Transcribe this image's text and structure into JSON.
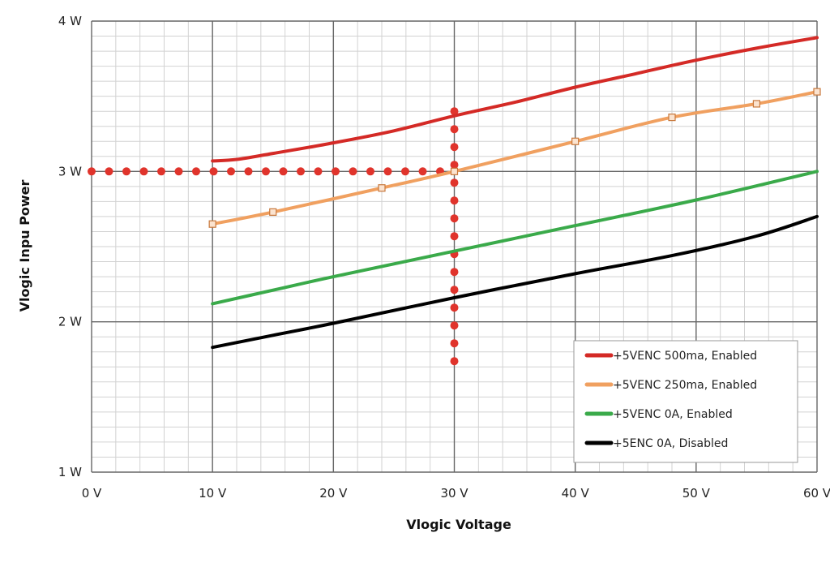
{
  "chart_data": {
    "type": "line",
    "title": "",
    "xlabel": "Vlogic Voltage",
    "ylabel": "Vlogic Inpu Power",
    "xlim": [
      0,
      60
    ],
    "ylim": [
      1,
      4
    ],
    "x_ticks": [
      {
        "value": 0,
        "label": "0 V"
      },
      {
        "value": 10,
        "label": "10 V"
      },
      {
        "value": 20,
        "label": "20 V"
      },
      {
        "value": 30,
        "label": "30 V"
      },
      {
        "value": 40,
        "label": "40 V"
      },
      {
        "value": 50,
        "label": "50 V"
      },
      {
        "value": 60,
        "label": "60 V"
      }
    ],
    "y_ticks": [
      {
        "value": 1,
        "label": "1 W"
      },
      {
        "value": 2,
        "label": "2 W"
      },
      {
        "value": 3,
        "label": "3 W"
      },
      {
        "value": 4,
        "label": "4 W"
      }
    ],
    "grid": true,
    "legend_position": "bottom-right",
    "series": [
      {
        "name": "+5VENC 500ma, Enabled",
        "color": "#d42a26",
        "marker": false,
        "points": [
          [
            10,
            3.07
          ],
          [
            12,
            3.08
          ],
          [
            15,
            3.12
          ],
          [
            20,
            3.19
          ],
          [
            25,
            3.27
          ],
          [
            30,
            3.37
          ],
          [
            35,
            3.46
          ],
          [
            40,
            3.56
          ],
          [
            45,
            3.65
          ],
          [
            50,
            3.74
          ],
          [
            55,
            3.82
          ],
          [
            60,
            3.89
          ]
        ]
      },
      {
        "name": "+5VENC 250ma, Enabled",
        "color": "#f0a060",
        "marker": true,
        "points": [
          [
            10,
            2.65
          ],
          [
            15,
            2.73
          ],
          [
            24,
            2.89
          ],
          [
            30,
            3.0
          ],
          [
            40,
            3.2
          ],
          [
            48,
            3.36
          ],
          [
            55,
            3.45
          ],
          [
            60,
            3.53
          ]
        ]
      },
      {
        "name": "+5VENC 0A, Enabled",
        "color": "#3aaa4a",
        "marker": false,
        "points": [
          [
            10,
            2.12
          ],
          [
            15,
            2.21
          ],
          [
            20,
            2.3
          ],
          [
            30,
            2.47
          ],
          [
            40,
            2.64
          ],
          [
            50,
            2.81
          ],
          [
            60,
            3.0
          ]
        ]
      },
      {
        "name": "+5ENC 0A, Disabled",
        "color": "#000000",
        "marker": false,
        "points": [
          [
            10,
            1.83
          ],
          [
            15,
            1.91
          ],
          [
            20,
            1.99
          ],
          [
            30,
            2.16
          ],
          [
            40,
            2.32
          ],
          [
            48,
            2.44
          ],
          [
            55,
            2.57
          ],
          [
            60,
            2.7
          ]
        ]
      }
    ],
    "annotations": [
      {
        "kind": "dotted-horizontal",
        "color": "#e0342c",
        "y": 3.0,
        "x_from": 0,
        "x_to": 30
      },
      {
        "kind": "dotted-vertical",
        "color": "#e0342c",
        "x": 30,
        "y_from": 1.74,
        "y_to": 3.4
      }
    ]
  }
}
